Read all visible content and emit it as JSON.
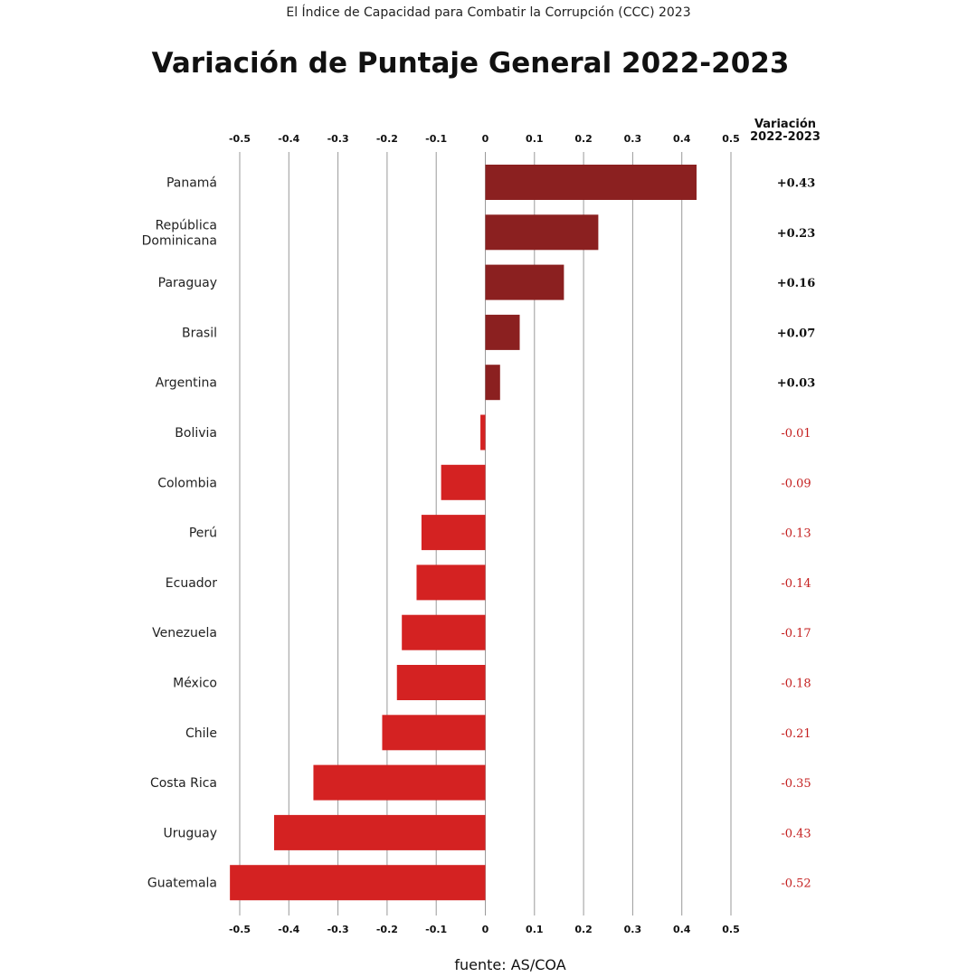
{
  "chart_data": {
    "type": "bar",
    "orientation": "horizontal",
    "supertitle": "El Índice de Capacidad para Combatir la Corrupción (CCC) 2023",
    "title": "Variación de Puntaje General 2022-2023",
    "value_column_header": [
      "Variación",
      "2022-2023"
    ],
    "source": "fuente: AS/COA",
    "xlim": [
      -0.5,
      0.5
    ],
    "xticks": [
      "-0.5",
      "-0.4",
      "-0.3",
      "-0.2",
      "-0.1",
      "0",
      "0.1",
      "0.2",
      "0.3",
      "0.4",
      "0.5"
    ],
    "tick_positions": [
      -0.5,
      -0.4,
      -0.3,
      -0.2,
      -0.1,
      0,
      0.1,
      0.2,
      0.3,
      0.4,
      0.5
    ],
    "grid": true,
    "colors": {
      "positive": "#8B2020",
      "negative": "#D42222",
      "grid": "#9a9a9a"
    },
    "categories": [
      [
        "Panamá"
      ],
      [
        "República",
        "Dominicana"
      ],
      [
        "Paraguay"
      ],
      [
        "Brasil"
      ],
      [
        "Argentina"
      ],
      [
        "Bolivia"
      ],
      [
        "Colombia"
      ],
      [
        "Perú"
      ],
      [
        "Ecuador"
      ],
      [
        "Venezuela"
      ],
      [
        "México"
      ],
      [
        "Chile"
      ],
      [
        "Costa Rica"
      ],
      [
        "Uruguay"
      ],
      [
        "Guatemala"
      ]
    ],
    "values": [
      0.43,
      0.23,
      0.16,
      0.07,
      0.03,
      -0.01,
      -0.09,
      -0.13,
      -0.14,
      -0.17,
      -0.18,
      -0.21,
      -0.35,
      -0.43,
      -0.52
    ],
    "value_labels": [
      "+0.43",
      "+0.23",
      "+0.16",
      "+0.07",
      "+0.03",
      "-0.01",
      "-0.09",
      "-0.13",
      "-0.14",
      "-0.17",
      "-0.18",
      "-0.21",
      "-0.35",
      "-0.43",
      "-0.52"
    ]
  }
}
